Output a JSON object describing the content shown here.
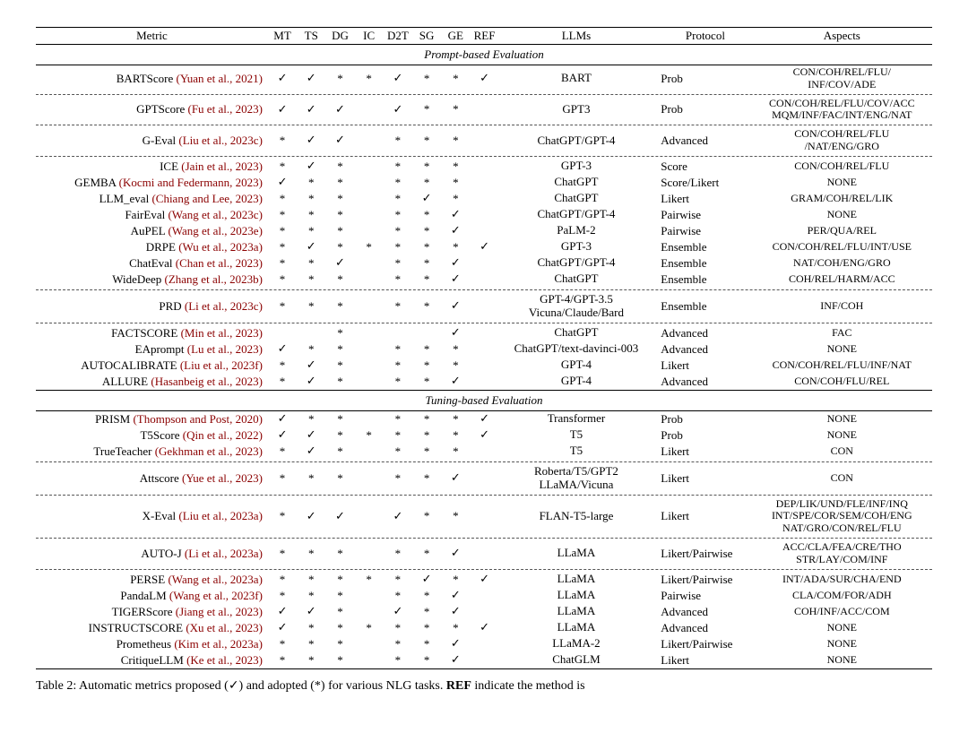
{
  "headers": {
    "metric": "Metric",
    "mt": "MT",
    "ts": "TS",
    "dg": "DG",
    "ic": "IC",
    "d2t": "D2T",
    "sg": "SG",
    "ge": "GE",
    "ref": "REF",
    "llms": "LLMs",
    "protocol": "Protocol",
    "aspects": "Aspects"
  },
  "sections": [
    {
      "title": "Prompt-based Evaluation",
      "groups": [
        [
          {
            "name": "BARTScore",
            "cite": "Yuan et al., 2021",
            "tasks": [
              "✓",
              "✓",
              "*",
              "*",
              "✓",
              "*",
              "*",
              "✓"
            ],
            "llm": "BART",
            "proto": "Prob",
            "aspects": "CON/COH/REL/FLU/\nINF/COV/ADE"
          }
        ],
        [
          {
            "name": "GPTScore",
            "cite": "Fu et al., 2023",
            "tasks": [
              "✓",
              "✓",
              "✓",
              "",
              "✓",
              "*",
              "*",
              ""
            ],
            "llm": "GPT3",
            "proto": "Prob",
            "aspects": "CON/COH/REL/FLU/COV/ACC\nMQM/INF/FAC/INT/ENG/NAT"
          }
        ],
        [
          {
            "name": "G-Eval",
            "cite": "Liu et al., 2023c",
            "tasks": [
              "*",
              "✓",
              "✓",
              "",
              "*",
              "*",
              "*",
              ""
            ],
            "llm": "ChatGPT/GPT-4",
            "proto": "Advanced",
            "aspects": "CON/COH/REL/FLU\n/NAT/ENG/GRO"
          }
        ],
        [
          {
            "name": "ICE",
            "cite": "Jain et al., 2023",
            "tasks": [
              "*",
              "✓",
              "*",
              "",
              "*",
              "*",
              "*",
              ""
            ],
            "llm": "GPT-3",
            "proto": "Score",
            "aspects": "CON/COH/REL/FLU"
          },
          {
            "name": "GEMBA",
            "cite": "Kocmi and Federmann, 2023",
            "tasks": [
              "✓",
              "*",
              "*",
              "",
              "*",
              "*",
              "*",
              ""
            ],
            "llm": "ChatGPT",
            "proto": "Score/Likert",
            "aspects": "NONE"
          },
          {
            "name": "LLM_eval",
            "cite": "Chiang and Lee, 2023",
            "tasks": [
              "*",
              "*",
              "*",
              "",
              "*",
              "✓",
              "*",
              ""
            ],
            "llm": "ChatGPT",
            "proto": "Likert",
            "aspects": "GRAM/COH/REL/LIK"
          },
          {
            "name": "FairEval",
            "cite": "Wang et al., 2023c",
            "tasks": [
              "*",
              "*",
              "*",
              "",
              "*",
              "*",
              "✓",
              ""
            ],
            "llm": "ChatGPT/GPT-4",
            "proto": "Pairwise",
            "aspects": "NONE"
          },
          {
            "name": "AuPEL",
            "cite": "Wang et al., 2023e",
            "tasks": [
              "*",
              "*",
              "*",
              "",
              "*",
              "*",
              "✓",
              ""
            ],
            "llm": "PaLM-2",
            "proto": "Pairwise",
            "aspects": "PER/QUA/REL"
          },
          {
            "name": "DRPE",
            "cite": "Wu et al., 2023a",
            "tasks": [
              "*",
              "✓",
              "*",
              "*",
              "*",
              "*",
              "*",
              "✓"
            ],
            "llm": "GPT-3",
            "proto": "Ensemble",
            "aspects": "CON/COH/REL/FLU/INT/USE"
          },
          {
            "name": "ChatEval",
            "cite": "Chan et al., 2023",
            "tasks": [
              "*",
              "*",
              "✓",
              "",
              "*",
              "*",
              "✓",
              ""
            ],
            "llm": "ChatGPT/GPT-4",
            "proto": "Ensemble",
            "aspects": "NAT/COH/ENG/GRO"
          },
          {
            "name": "WideDeep",
            "cite": "Zhang et al., 2023b",
            "tasks": [
              "*",
              "*",
              "*",
              "",
              "*",
              "*",
              "✓",
              ""
            ],
            "llm": "ChatGPT",
            "proto": "Ensemble",
            "aspects": "COH/REL/HARM/ACC"
          }
        ],
        [
          {
            "name": "PRD",
            "cite": "Li et al., 2023c",
            "tasks": [
              "*",
              "*",
              "*",
              "",
              "*",
              "*",
              "✓",
              ""
            ],
            "llm": "GPT-4/GPT-3.5\nVicuna/Claude/Bard",
            "proto": "Ensemble",
            "aspects": "INF/COH"
          }
        ],
        [
          {
            "name": "FACTSCORE",
            "cite": "Min et al., 2023",
            "tasks": [
              "",
              "",
              "*",
              "",
              "",
              "",
              "✓",
              ""
            ],
            "llm": "ChatGPT",
            "proto": "Advanced",
            "aspects": "FAC"
          },
          {
            "name": "EAprompt",
            "cite": "Lu et al., 2023",
            "tasks": [
              "✓",
              "*",
              "*",
              "",
              "*",
              "*",
              "*",
              ""
            ],
            "llm": "ChatGPT/text-davinci-003",
            "proto": "Advanced",
            "aspects": "NONE"
          },
          {
            "name": "AUTOCALIBRATE",
            "cite": "Liu et al., 2023f",
            "tasks": [
              "*",
              "✓",
              "*",
              "",
              "*",
              "*",
              "*",
              ""
            ],
            "llm": "GPT-4",
            "proto": "Likert",
            "aspects": "CON/COH/REL/FLU/INF/NAT"
          },
          {
            "name": "ALLURE",
            "cite": "Hasanbeig et al., 2023",
            "tasks": [
              "*",
              "✓",
              "*",
              "",
              "*",
              "*",
              "✓",
              ""
            ],
            "llm": "GPT-4",
            "proto": "Advanced",
            "aspects": "CON/COH/FLU/REL"
          }
        ]
      ]
    },
    {
      "title": "Tuning-based Evaluation",
      "groups": [
        [
          {
            "name": "PRISM",
            "cite": "Thompson and Post, 2020",
            "tasks": [
              "✓",
              "*",
              "*",
              "",
              "*",
              "*",
              "*",
              "✓"
            ],
            "llm": "Transformer",
            "proto": "Prob",
            "aspects": "NONE"
          },
          {
            "name": "T5Score",
            "cite": "Qin et al., 2022",
            "tasks": [
              "✓",
              "✓",
              "*",
              "*",
              "*",
              "*",
              "*",
              "✓"
            ],
            "llm": "T5",
            "proto": "Prob",
            "aspects": "NONE"
          },
          {
            "name": "TrueTeacher",
            "cite": "Gekhman et al., 2023",
            "tasks": [
              "*",
              "✓",
              "*",
              "",
              "*",
              "*",
              "*",
              ""
            ],
            "llm": "T5",
            "proto": "Likert",
            "aspects": "CON"
          }
        ],
        [
          {
            "name": "Attscore",
            "cite": "Yue et al., 2023",
            "tasks": [
              "*",
              "*",
              "*",
              "",
              "*",
              "*",
              "✓",
              ""
            ],
            "llm": "Roberta/T5/GPT2\nLLaMA/Vicuna",
            "proto": "Likert",
            "aspects": "CON"
          }
        ],
        [
          {
            "name": "X-Eval",
            "cite": "Liu et al., 2023a",
            "tasks": [
              "*",
              "✓",
              "✓",
              "",
              "✓",
              "*",
              "*",
              ""
            ],
            "llm": "FLAN-T5-large",
            "proto": "Likert",
            "aspects": "DEP/LIK/UND/FLE/INF/INQ\nINT/SPE/COR/SEM/COH/ENG\nNAT/GRO/CON/REL/FLU"
          }
        ],
        [
          {
            "name": "AUTO-J",
            "cite": "Li et al., 2023a",
            "tasks": [
              "*",
              "*",
              "*",
              "",
              "*",
              "*",
              "✓",
              ""
            ],
            "llm": "LLaMA",
            "proto": "Likert/Pairwise",
            "aspects": "ACC/CLA/FEA/CRE/THO\nSTR/LAY/COM/INF"
          }
        ],
        [
          {
            "name": "PERSE",
            "cite": "Wang et al., 2023a",
            "tasks": [
              "*",
              "*",
              "*",
              "*",
              "*",
              "✓",
              "*",
              "✓"
            ],
            "llm": "LLaMA",
            "proto": "Likert/Pairwise",
            "aspects": "INT/ADA/SUR/CHA/END"
          },
          {
            "name": "PandaLM",
            "cite": "Wang et al., 2023f",
            "tasks": [
              "*",
              "*",
              "*",
              "",
              "*",
              "*",
              "✓",
              ""
            ],
            "llm": "LLaMA",
            "proto": "Pairwise",
            "aspects": "CLA/COM/FOR/ADH"
          },
          {
            "name": "TIGERScore",
            "cite": "Jiang et al., 2023",
            "tasks": [
              "✓",
              "✓",
              "*",
              "",
              "✓",
              "*",
              "✓",
              ""
            ],
            "llm": "LLaMA",
            "proto": "Advanced",
            "aspects": "COH/INF/ACC/COM"
          },
          {
            "name": "INSTRUCTSCORE",
            "cite": "Xu et al., 2023",
            "tasks": [
              "✓",
              "*",
              "*",
              "*",
              "*",
              "*",
              "*",
              "✓"
            ],
            "llm": "LLaMA",
            "proto": "Advanced",
            "aspects": "NONE"
          },
          {
            "name": "Prometheus",
            "cite": "Kim et al., 2023a",
            "tasks": [
              "*",
              "*",
              "*",
              "",
              "*",
              "*",
              "✓",
              ""
            ],
            "llm": "LLaMA-2",
            "proto": "Likert/Pairwise",
            "aspects": "NONE"
          },
          {
            "name": "CritiqueLLM",
            "cite": "Ke et al., 2023",
            "tasks": [
              "*",
              "*",
              "*",
              "",
              "*",
              "*",
              "✓",
              ""
            ],
            "llm": "ChatGLM",
            "proto": "Likert",
            "aspects": "NONE"
          }
        ]
      ]
    }
  ],
  "caption_prefix": "Table 2: Automatic metrics proposed (",
  "caption_mid1": ") and adopted (*) for various NLG tasks. ",
  "caption_ref": "REF",
  "caption_suffix": " indicate the method is",
  "check": "✓"
}
